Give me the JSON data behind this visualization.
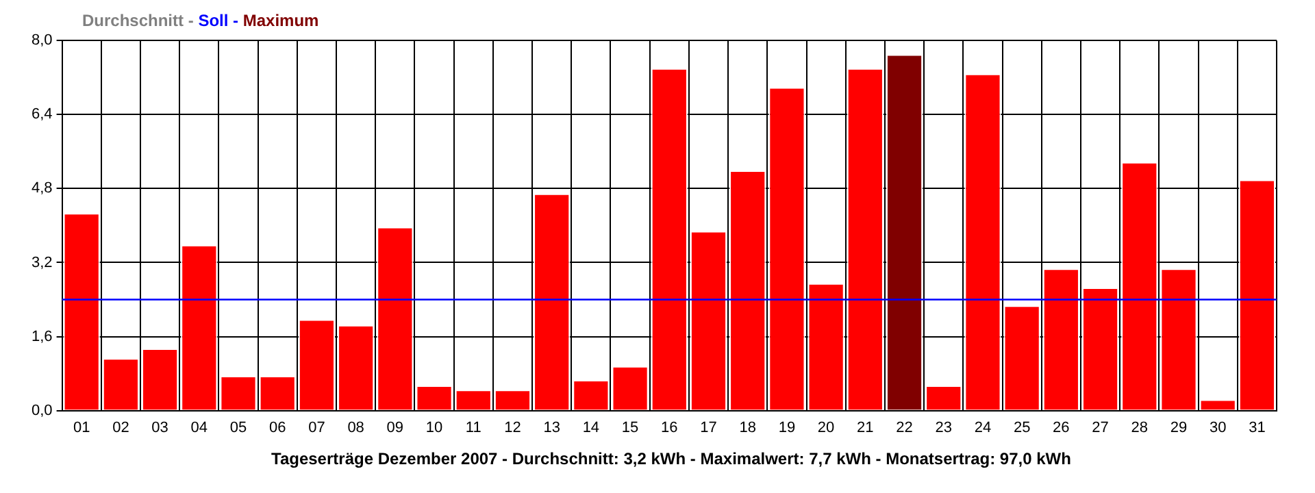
{
  "chart_data": {
    "type": "bar",
    "annotations": [
      "Durchschnitt -",
      "Soll -",
      "Maximum"
    ],
    "xlabel": "Tageserträge Dezember 2007 - Durchschnitt: 3,2 kWh - Maximalwert: 7,7 kWh - Monatsertrag: 97,0 kWh",
    "categories": [
      "01",
      "02",
      "03",
      "04",
      "05",
      "06",
      "07",
      "08",
      "09",
      "10",
      "11",
      "12",
      "13",
      "14",
      "15",
      "16",
      "17",
      "18",
      "19",
      "20",
      "21",
      "22",
      "23",
      "24",
      "25",
      "26",
      "27",
      "28",
      "29",
      "30",
      "31"
    ],
    "values": [
      4.27,
      1.13,
      1.34,
      3.58,
      0.75,
      0.75,
      1.97,
      1.85,
      3.97,
      0.54,
      0.45,
      0.45,
      4.69,
      0.66,
      0.96,
      7.4,
      3.88,
      5.19,
      6.99,
      2.75,
      7.4,
      7.7,
      0.54,
      7.28,
      2.27,
      3.07,
      2.66,
      5.37,
      3.07,
      0.24,
      4.99
    ],
    "colors": [
      "#ff0000",
      "#ff0000",
      "#ff0000",
      "#ff0000",
      "#ff0000",
      "#ff0000",
      "#ff0000",
      "#ff0000",
      "#ff0000",
      "#ff0000",
      "#ff0000",
      "#ff0000",
      "#ff0000",
      "#ff0000",
      "#ff0000",
      "#ff0000",
      "#ff0000",
      "#ff0000",
      "#ff0000",
      "#ff0000",
      "#ff0000",
      "#800000",
      "#ff0000",
      "#ff0000",
      "#ff0000",
      "#ff0000",
      "#ff0000",
      "#ff0000",
      "#ff0000",
      "#ff0000",
      "#ff0000"
    ],
    "ylim": [
      0,
      8
    ],
    "yticks": [
      {
        "value": 0,
        "label": "0,0"
      },
      {
        "value": 1.6,
        "label": "1,6"
      },
      {
        "value": 3.2,
        "label": "3,2"
      },
      {
        "value": 4.8,
        "label": "4,8"
      },
      {
        "value": 6.4,
        "label": "6,4"
      },
      {
        "value": 8,
        "label": "8,0"
      }
    ],
    "ref_lines": [
      {
        "axis": "y",
        "value": 2.4,
        "color": "#0000ff"
      }
    ],
    "grid": true
  }
}
